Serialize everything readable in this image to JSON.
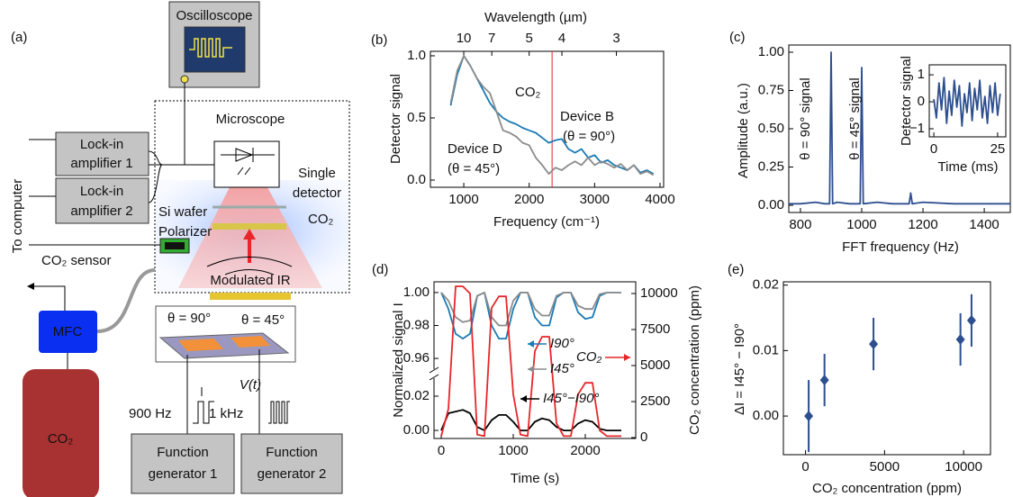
{
  "diagram": {
    "panel_label": "(a)",
    "oscilloscope": "Oscilloscope",
    "microscope": "Microscope",
    "lockin_1": [
      "Lock-in",
      "amplifier 1"
    ],
    "lockin_2": [
      "Lock-in",
      "amplifier 2"
    ],
    "detector": [
      "Single",
      "detector"
    ],
    "si_wafer": "Si wafer",
    "polarizer": "Polarizer",
    "chamber_gas": "CO₂",
    "to_computer": "To computer",
    "co2_sensor": "CO₂ sensor",
    "modulated_ir": "Modulated IR",
    "angle_90": "θ = 90°",
    "angle_45": "θ = 45°",
    "mfc": "MFC",
    "cylinder": "CO₂",
    "voltage": "V(t)",
    "freq_1": "900 Hz",
    "freq_2": "1 kHz",
    "function_generator_1": [
      "Function",
      "generator 1"
    ],
    "function_generator_2": [
      "Function",
      "generator 2"
    ]
  },
  "chart_data": [
    {
      "panel_label": "(b)",
      "type": "line",
      "xlabel": "Frequency (cm⁻¹)",
      "ylabel": "Detector signal",
      "x2label": "Wavelength (µm)",
      "x": [
        800,
        900,
        1000,
        1100,
        1200,
        1300,
        1400,
        1500,
        1600,
        1700,
        1800,
        1900,
        2000,
        2100,
        2200,
        2300,
        2400,
        2500,
        2600,
        2700,
        2800,
        2900,
        3000,
        3100,
        3200,
        3300,
        3400,
        3500,
        3600,
        3700,
        3800,
        3900
      ],
      "xlim": [
        490,
        4055
      ],
      "xticks": [
        1000,
        2000,
        3000,
        4000
      ],
      "x2ticks": [
        {
          "value": 1000,
          "label": "10"
        },
        {
          "value": 1428.6,
          "label": "7"
        },
        {
          "value": 2000,
          "label": "5"
        },
        {
          "value": 2500,
          "label": "4"
        },
        {
          "value": 3333.3,
          "label": "3"
        }
      ],
      "ylim": [
        -0.058,
        1.036
      ],
      "yticks": [
        {
          "value": 0,
          "label": "0.0"
        },
        0.5,
        {
          "value": 1,
          "label": "1.0"
        }
      ],
      "vlines": [
        {
          "value": 2350,
          "label": "CO₂",
          "color": "#e8262a"
        }
      ],
      "series": [
        {
          "name": "Device B",
          "color": "#1a7ab5",
          "values": [
            0.6,
            0.85,
            1.0,
            0.92,
            0.82,
            0.72,
            0.62,
            0.55,
            0.5,
            0.47,
            0.45,
            0.42,
            0.4,
            0.38,
            0.34,
            0.3,
            0.32,
            0.33,
            0.25,
            0.22,
            0.25,
            0.18,
            0.2,
            0.14,
            0.16,
            0.12,
            0.1,
            0.08,
            0.12,
            0.06,
            0.08,
            0.05
          ]
        },
        {
          "name": "Device D",
          "color": "#8c8c8c",
          "values": [
            0.62,
            0.88,
            1.0,
            0.92,
            0.82,
            0.75,
            0.7,
            0.55,
            0.4,
            0.38,
            0.35,
            0.3,
            0.28,
            0.18,
            0.12,
            0.05,
            0.1,
            0.08,
            0.12,
            0.15,
            0.12,
            0.18,
            0.12,
            0.15,
            0.13,
            0.1,
            0.13,
            0.08,
            0.12,
            0.05,
            0.07,
            0.04
          ]
        }
      ],
      "annotations": [
        {
          "text": "(θ = 90°)",
          "color": "#1a7ab5"
        },
        {
          "text": "(θ = 45°)",
          "color": "#8c8c8c"
        }
      ]
    },
    {
      "panel_label": "(c)",
      "type": "line",
      "xlabel": "FFT frequency (Hz)",
      "ylabel": "Amplitude (a.u.)",
      "x": [
        760,
        800,
        850,
        880,
        895,
        900,
        905,
        920,
        960,
        995,
        1000,
        1005,
        1050,
        1100,
        1155,
        1160,
        1165,
        1200,
        1300,
        1400,
        1485
      ],
      "xlim": [
        762,
        1485
      ],
      "xticks": [
        800,
        1000,
        1200,
        1400
      ],
      "ylim": [
        -0.047,
        1.047
      ],
      "yticks": [
        {
          "value": 0,
          "label": "0.00"
        },
        0.25,
        {
          "value": 0.5,
          "label": "0.50"
        },
        0.75,
        {
          "value": 1,
          "label": "1.00"
        }
      ],
      "series": [
        {
          "color": "#2d4f8f",
          "values": [
            0.01,
            0.01,
            0.02,
            0.01,
            0.01,
            1.0,
            0.01,
            0.02,
            0.01,
            0.01,
            0.9,
            0.01,
            0.02,
            0.01,
            0.01,
            0.08,
            0.01,
            0.02,
            0.01,
            0.01,
            0.01
          ]
        }
      ],
      "annotations": [
        {
          "text": "θ = 90° signal",
          "color": "#1a7ab5"
        },
        {
          "text": "θ = 45° signal",
          "color": "#8c8c8c"
        }
      ]
    },
    {
      "type": "line",
      "inset": true,
      "xlabel": "Time (ms)",
      "ylabel": "Detector signal",
      "x": [
        0,
        1,
        2,
        3,
        4,
        5,
        6,
        7,
        8,
        9,
        10,
        11,
        12,
        13,
        14,
        15,
        16,
        17,
        18,
        19,
        20,
        21,
        22,
        23,
        24,
        25,
        26
      ],
      "xlim": [
        -1.8,
        28.2
      ],
      "xticks": [
        0,
        25
      ],
      "ylim": [
        -1.3,
        1.37
      ],
      "yticks": [
        {
          "value": -1,
          "label": "−1"
        },
        0,
        1
      ],
      "series": [
        {
          "color": "#2d4f8f",
          "values": [
            0.1,
            -0.6,
            0.7,
            -0.3,
            0.9,
            -0.8,
            0.4,
            -0.5,
            0.8,
            -0.2,
            0.6,
            -0.9,
            0.3,
            -0.4,
            0.7,
            -0.7,
            0.5,
            -0.3,
            0.8,
            -0.6,
            0.2,
            -0.8,
            0.6,
            -0.4,
            0.7,
            -0.5,
            0.3
          ]
        }
      ]
    },
    {
      "panel_label": "(d)",
      "type": "line",
      "xlabel": "Time (s)",
      "ylabel": "Normalized signal I",
      "y2label": "CO₂ concentration (ppm)",
      "x": [
        0,
        100,
        200,
        300,
        400,
        500,
        600,
        700,
        800,
        900,
        1000,
        1100,
        1200,
        1300,
        1400,
        1500,
        1600,
        1700,
        1800,
        1900,
        2000,
        2100,
        2200,
        2300,
        2400,
        2500
      ],
      "xlim": [
        -100,
        2700
      ],
      "xticks": [
        0,
        1000,
        2000
      ],
      "broken_axis": {
        "upper": {
          "ylim": [
            0.9535,
            1.0065
          ],
          "yticks": [
            0.96,
            0.98,
            {
              "value": 1,
              "label": "1.00"
            }
          ]
        },
        "lower": {
          "ylim": [
            -0.0047,
            0.0305
          ],
          "yticks": [
            {
              "value": 0,
              "label": "0.00"
            },
            0.02
          ]
        }
      },
      "y2lim": [
        -60,
        10810
      ],
      "y2ticks": [
        0,
        2500,
        5000,
        7500,
        10000
      ],
      "series": [
        {
          "name": "I90°",
          "color": "#1a7ab5",
          "axis": "upper",
          "values": [
            1.0,
            0.99,
            0.975,
            0.972,
            0.975,
            0.998,
            1.0,
            0.98,
            0.972,
            0.972,
            0.99,
            1.0,
            1.0,
            0.985,
            0.98,
            0.98,
            0.997,
            1.0,
            1.0,
            0.988,
            0.984,
            0.985,
            0.998,
            1.0,
            1.0,
            1.0
          ]
        },
        {
          "name": "I45°",
          "color": "#8c8c8c",
          "axis": "upper",
          "values": [
            1.0,
            0.995,
            0.985,
            0.982,
            0.983,
            0.998,
            1.0,
            0.985,
            0.98,
            0.98,
            0.995,
            1.0,
            1.0,
            0.99,
            0.986,
            0.986,
            0.998,
            1.0,
            1.0,
            0.992,
            0.99,
            0.99,
            0.999,
            1.0,
            1.0,
            1.0
          ]
        },
        {
          "name": "I45°−I90°",
          "color": "#000000",
          "axis": "lower",
          "values": [
            0.0,
            0.01,
            0.011,
            0.012,
            0.01,
            0.002,
            0.0,
            0.006,
            0.009,
            0.009,
            0.005,
            0.0,
            0.0,
            0.005,
            0.007,
            0.006,
            0.002,
            0.0,
            0.0,
            0.004,
            0.006,
            0.005,
            0.001,
            0.0,
            0.0,
            0.0
          ]
        },
        {
          "name": "CO₂",
          "color": "#e8262a",
          "axis": "y2",
          "values": [
            100,
            2000,
            10500,
            10500,
            10000,
            200,
            100,
            9000,
            9800,
            9800,
            3000,
            200,
            100,
            6000,
            7000,
            7000,
            1000,
            100,
            100,
            3000,
            3800,
            3800,
            500,
            100,
            100,
            100
          ]
        }
      ]
    },
    {
      "panel_label": "(e)",
      "type": "scatter",
      "xlabel": "CO₂ concentration (ppm)",
      "ylabel": "ΔI = I45° − I90°",
      "x": [
        200,
        1200,
        4300,
        9800,
        10500
      ],
      "xlim": [
        -1400,
        11700
      ],
      "xticks": [
        0,
        5000,
        10000
      ],
      "ylim": [
        -0.0059,
        0.0205
      ],
      "yticks": [
        {
          "value": 0,
          "label": "0.00"
        },
        0.01,
        0.02
      ],
      "series": [
        {
          "color": "#2d4f8f",
          "values": [
            0.0,
            0.0055,
            0.011,
            0.0117,
            0.0146
          ],
          "errors": [
            0.0055,
            0.004,
            0.004,
            0.004,
            0.004
          ]
        }
      ]
    }
  ]
}
